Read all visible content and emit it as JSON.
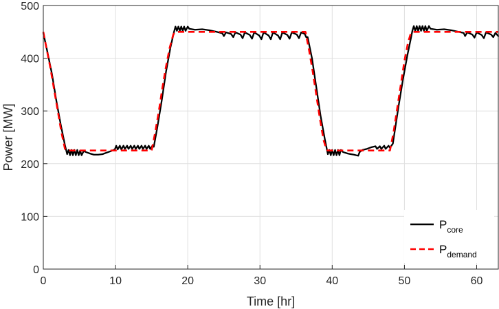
{
  "chart_data": {
    "type": "line",
    "xlabel": "Time [hr]",
    "ylabel": "Power [MW]",
    "xlim": [
      0,
      63
    ],
    "ylim": [
      0,
      500
    ],
    "xticks": [
      0,
      10,
      20,
      30,
      40,
      50,
      60
    ],
    "yticks": [
      0,
      100,
      200,
      300,
      400,
      500
    ],
    "grid": true,
    "legend_position": "bottom-right",
    "series": [
      {
        "name": "P_core",
        "label_main": "P",
        "label_sub": "core",
        "color": "#000000",
        "style": "solid",
        "points": [
          [
            0,
            448
          ],
          [
            0.6,
            410
          ],
          [
            1.2,
            370
          ],
          [
            1.8,
            320
          ],
          [
            2.4,
            275
          ],
          [
            3.0,
            235
          ],
          [
            3.3,
            218
          ],
          [
            3.5,
            226
          ],
          [
            3.7,
            216
          ],
          [
            3.9,
            226
          ],
          [
            4.1,
            216
          ],
          [
            4.3,
            226
          ],
          [
            4.5,
            216
          ],
          [
            4.7,
            226
          ],
          [
            4.9,
            216
          ],
          [
            5.1,
            225
          ],
          [
            5.3,
            216
          ],
          [
            5.6,
            224
          ],
          [
            5.9,
            222
          ],
          [
            6.5,
            219
          ],
          [
            7.0,
            217
          ],
          [
            7.6,
            217
          ],
          [
            8.2,
            218
          ],
          [
            8.8,
            221
          ],
          [
            9.4,
            224
          ],
          [
            9.9,
            227
          ],
          [
            10.1,
            234
          ],
          [
            10.3,
            227
          ],
          [
            10.6,
            234
          ],
          [
            10.8,
            227
          ],
          [
            11.1,
            234
          ],
          [
            11.3,
            228
          ],
          [
            11.6,
            234
          ],
          [
            11.8,
            228
          ],
          [
            12.1,
            234
          ],
          [
            12.3,
            228
          ],
          [
            12.6,
            234
          ],
          [
            12.8,
            228
          ],
          [
            13.1,
            234
          ],
          [
            13.3,
            228
          ],
          [
            13.6,
            234
          ],
          [
            13.8,
            228
          ],
          [
            14.1,
            234
          ],
          [
            14.3,
            228
          ],
          [
            14.6,
            234
          ],
          [
            14.8,
            228
          ],
          [
            15.1,
            234
          ],
          [
            15.3,
            232
          ],
          [
            15.8,
            270
          ],
          [
            16.4,
            320
          ],
          [
            17.0,
            375
          ],
          [
            17.6,
            420
          ],
          [
            18.1,
            450
          ],
          [
            18.3,
            460
          ],
          [
            18.5,
            452
          ],
          [
            18.7,
            460
          ],
          [
            18.9,
            452
          ],
          [
            19.1,
            460
          ],
          [
            19.3,
            452
          ],
          [
            19.5,
            460
          ],
          [
            19.7,
            452
          ],
          [
            20.0,
            460
          ],
          [
            20.2,
            456
          ],
          [
            21.0,
            454
          ],
          [
            22.0,
            455
          ],
          [
            23.0,
            453
          ],
          [
            24.0,
            450
          ],
          [
            24.6,
            448
          ],
          [
            24.8,
            447
          ],
          [
            25.0,
            442
          ],
          [
            25.3,
            449
          ],
          [
            26.0,
            446
          ],
          [
            26.3,
            440
          ],
          [
            26.6,
            449
          ],
          [
            27.3,
            445
          ],
          [
            27.6,
            438
          ],
          [
            27.9,
            449
          ],
          [
            28.6,
            444
          ],
          [
            28.9,
            437
          ],
          [
            29.2,
            449
          ],
          [
            29.9,
            443
          ],
          [
            30.2,
            436
          ],
          [
            30.5,
            449
          ],
          [
            31.2,
            443
          ],
          [
            31.5,
            436
          ],
          [
            31.8,
            449
          ],
          [
            32.5,
            443
          ],
          [
            32.8,
            436
          ],
          [
            33.1,
            449
          ],
          [
            33.8,
            444
          ],
          [
            34.1,
            437
          ],
          [
            34.4,
            449
          ],
          [
            35.1,
            445
          ],
          [
            35.4,
            438
          ],
          [
            35.7,
            449
          ],
          [
            36.2,
            446
          ],
          [
            36.4,
            440
          ],
          [
            36.6,
            440
          ],
          [
            37.2,
            400
          ],
          [
            37.8,
            345
          ],
          [
            38.4,
            290
          ],
          [
            39.0,
            245
          ],
          [
            39.4,
            218
          ],
          [
            39.6,
            226
          ],
          [
            39.8,
            216
          ],
          [
            40.0,
            226
          ],
          [
            40.2,
            216
          ],
          [
            40.4,
            226
          ],
          [
            40.6,
            216
          ],
          [
            40.8,
            226
          ],
          [
            41.0,
            216
          ],
          [
            41.2,
            226
          ],
          [
            41.5,
            222
          ],
          [
            42.2,
            219
          ],
          [
            43.0,
            217
          ],
          [
            43.6,
            215
          ],
          [
            43.8,
            222
          ],
          [
            44.2,
            226
          ],
          [
            44.8,
            228
          ],
          [
            45.4,
            231
          ],
          [
            46.0,
            233
          ],
          [
            46.2,
            228
          ],
          [
            46.6,
            233
          ],
          [
            46.8,
            228
          ],
          [
            47.2,
            234
          ],
          [
            47.4,
            228
          ],
          [
            47.8,
            234
          ],
          [
            48.0,
            230
          ],
          [
            48.4,
            238
          ],
          [
            48.7,
            265
          ],
          [
            49.2,
            310
          ],
          [
            49.8,
            360
          ],
          [
            50.4,
            405
          ],
          [
            50.9,
            438
          ],
          [
            51.1,
            452
          ],
          [
            51.3,
            461
          ],
          [
            51.5,
            452
          ],
          [
            51.7,
            461
          ],
          [
            51.9,
            452
          ],
          [
            52.1,
            461
          ],
          [
            52.3,
            452
          ],
          [
            52.5,
            461
          ],
          [
            52.7,
            452
          ],
          [
            52.9,
            461
          ],
          [
            53.1,
            452
          ],
          [
            53.4,
            461
          ],
          [
            53.6,
            456
          ],
          [
            54.5,
            454
          ],
          [
            55.5,
            455
          ],
          [
            56.5,
            453
          ],
          [
            57.5,
            450
          ],
          [
            58.2,
            448
          ],
          [
            58.4,
            442
          ],
          [
            58.7,
            449
          ],
          [
            59.4,
            445
          ],
          [
            59.7,
            439
          ],
          [
            60.0,
            449
          ],
          [
            60.7,
            444
          ],
          [
            61.0,
            438
          ],
          [
            61.3,
            449
          ],
          [
            62.0,
            445
          ],
          [
            62.3,
            440
          ],
          [
            62.6,
            448
          ],
          [
            63.0,
            442
          ]
        ]
      },
      {
        "name": "P_demand",
        "label_main": "P",
        "label_sub": "demand",
        "color": "#ff0000",
        "style": "dashed",
        "points": [
          [
            0,
            450
          ],
          [
            0.5,
            415
          ],
          [
            1.0,
            380
          ],
          [
            1.5,
            340
          ],
          [
            2.0,
            300
          ],
          [
            2.5,
            260
          ],
          [
            3.0,
            228
          ],
          [
            3.3,
            225
          ],
          [
            15.0,
            225
          ],
          [
            15.5,
            260
          ],
          [
            16.0,
            300
          ],
          [
            16.5,
            345
          ],
          [
            17.0,
            385
          ],
          [
            17.5,
            420
          ],
          [
            18.0,
            445
          ],
          [
            18.3,
            450
          ],
          [
            36.3,
            450
          ],
          [
            36.8,
            415
          ],
          [
            37.3,
            375
          ],
          [
            37.8,
            330
          ],
          [
            38.3,
            285
          ],
          [
            38.8,
            245
          ],
          [
            39.2,
            227
          ],
          [
            39.4,
            225
          ],
          [
            48.0,
            225
          ],
          [
            48.5,
            260
          ],
          [
            49.0,
            305
          ],
          [
            49.5,
            350
          ],
          [
            50.0,
            395
          ],
          [
            50.5,
            430
          ],
          [
            50.9,
            448
          ],
          [
            51.1,
            450
          ],
          [
            63.0,
            450
          ]
        ]
      }
    ]
  }
}
